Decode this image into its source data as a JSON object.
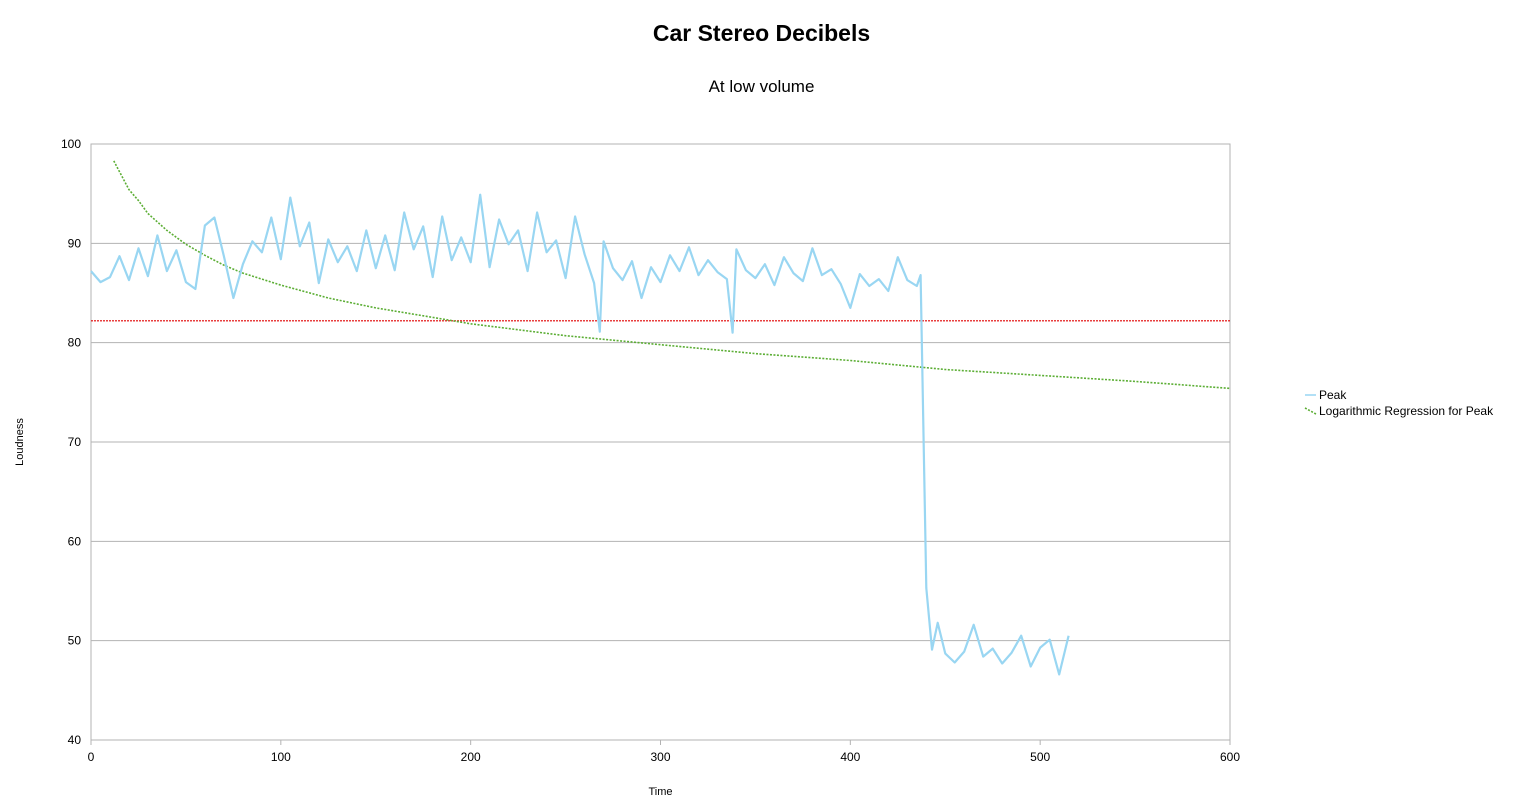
{
  "chart_data": {
    "type": "line",
    "title": "Car Stereo Decibels",
    "subtitle": "At low volume",
    "xlabel": "Time",
    "ylabel": "Loudness",
    "xlim": [
      0,
      600
    ],
    "ylim": [
      40,
      100
    ],
    "x_ticks": [
      "0",
      "100",
      "200",
      "300",
      "400",
      "500",
      "600"
    ],
    "y_ticks": [
      "40",
      "50",
      "60",
      "70",
      "80",
      "90",
      "100"
    ],
    "grid": "horizontal",
    "legend_position": "right",
    "reference_line": {
      "y": 82.2,
      "color": "#e00000"
    },
    "series": [
      {
        "name": "Peak",
        "color": "#99d6f2",
        "x": [
          0,
          5,
          10,
          15,
          20,
          25,
          30,
          35,
          40,
          45,
          50,
          55,
          60,
          65,
          70,
          75,
          80,
          85,
          90,
          95,
          100,
          105,
          110,
          115,
          120,
          125,
          130,
          135,
          140,
          145,
          150,
          155,
          160,
          165,
          170,
          175,
          180,
          185,
          190,
          195,
          200,
          205,
          210,
          215,
          220,
          225,
          230,
          235,
          240,
          245,
          250,
          255,
          260,
          265,
          268,
          270,
          275,
          280,
          285,
          290,
          295,
          300,
          305,
          310,
          315,
          320,
          325,
          330,
          335,
          338,
          340,
          345,
          350,
          355,
          360,
          365,
          370,
          375,
          380,
          385,
          390,
          395,
          400,
          405,
          410,
          415,
          420,
          425,
          430,
          435,
          437,
          440,
          443,
          446,
          450,
          455,
          460,
          465,
          470,
          475,
          480,
          485,
          490,
          495,
          500,
          505,
          510,
          515
        ],
        "values": [
          87.2,
          86.1,
          86.6,
          88.7,
          86.3,
          89.5,
          86.7,
          90.8,
          87.2,
          89.3,
          86.1,
          85.4,
          91.8,
          92.6,
          88.7,
          84.5,
          87.9,
          90.2,
          89.1,
          92.6,
          88.4,
          94.6,
          89.7,
          92.1,
          86.0,
          90.4,
          88.1,
          89.7,
          87.2,
          91.3,
          87.5,
          90.8,
          87.3,
          93.1,
          89.4,
          91.7,
          86.6,
          92.7,
          88.3,
          90.6,
          88.1,
          94.9,
          87.6,
          92.4,
          89.9,
          91.3,
          87.2,
          93.1,
          89.1,
          90.3,
          86.5,
          92.7,
          88.9,
          86.0,
          81.1,
          90.2,
          87.5,
          86.3,
          88.2,
          84.5,
          87.6,
          86.1,
          88.8,
          87.2,
          89.6,
          86.8,
          88.3,
          87.1,
          86.4,
          81.0,
          89.4,
          87.3,
          86.5,
          87.9,
          85.8,
          88.6,
          87.0,
          86.2,
          89.5,
          86.8,
          87.4,
          85.9,
          83.5,
          86.9,
          85.7,
          86.4,
          85.2,
          88.6,
          86.3,
          85.7,
          86.8,
          55.3,
          49.1,
          51.8,
          48.7,
          47.8,
          48.9,
          51.6,
          48.4,
          49.2,
          47.7,
          48.8,
          50.5,
          47.4,
          49.3,
          50.1,
          46.6,
          50.5
        ]
      },
      {
        "name": "Logarithmic Regression for Peak",
        "color": "#5cae35",
        "x": [
          12,
          20,
          25,
          30,
          40,
          50,
          60,
          70,
          80,
          100,
          125,
          150,
          175,
          200,
          250,
          300,
          350,
          400,
          450,
          500,
          550,
          600
        ],
        "values": [
          98.3,
          95.4,
          94.3,
          93.0,
          91.3,
          89.9,
          88.8,
          87.8,
          87.0,
          85.8,
          84.5,
          83.5,
          82.7,
          81.9,
          80.7,
          79.8,
          78.9,
          78.2,
          77.3,
          76.7,
          76.1,
          75.4
        ]
      }
    ]
  }
}
